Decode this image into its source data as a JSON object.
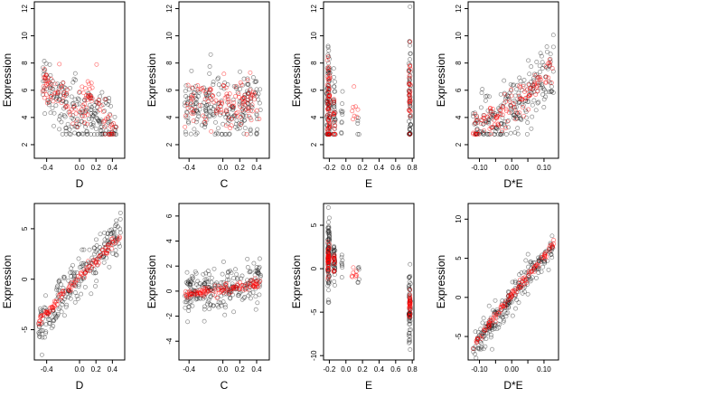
{
  "chart_data": [
    {
      "type": "scatter",
      "xlabel": "D",
      "ylabel": "Expression",
      "xlim": [
        -0.55,
        0.55
      ],
      "ylim": [
        1,
        12.5
      ],
      "xticks": [
        -0.4,
        0.0,
        0.2,
        0.4
      ],
      "xtick_labels": [
        "-0.4",
        "0.0",
        "0.2",
        "0.4"
      ],
      "yticks": [
        2,
        4,
        6,
        8,
        10,
        12
      ],
      "ytick_labels": [
        "2",
        "4",
        "6",
        "8",
        "10",
        "12"
      ],
      "series": [
        {
          "color": "#000000",
          "trend": [
            [
              -0.45,
              7.0
            ],
            [
              -0.3,
              5.5
            ],
            [
              -0.1,
              4.3
            ],
            [
              0.0,
              4.0
            ],
            [
              0.15,
              4.8
            ],
            [
              0.3,
              3.6
            ],
            [
              0.45,
              3.0
            ]
          ],
          "spread": 2.2,
          "floor": 2.75,
          "n": 220
        },
        {
          "color": "#ff0000",
          "trend": [
            [
              -0.45,
              6.8
            ],
            [
              -0.3,
              6.0
            ],
            [
              -0.1,
              4.6
            ],
            [
              0.0,
              4.4
            ],
            [
              0.15,
              6.3
            ],
            [
              0.3,
              3.4
            ],
            [
              0.45,
              2.8
            ]
          ],
          "spread": 1.3,
          "floor": 2.75,
          "n": 110
        }
      ]
    },
    {
      "type": "scatter",
      "xlabel": "C",
      "ylabel": "Expression",
      "xlim": [
        -0.52,
        0.55
      ],
      "ylim": [
        1,
        12.5
      ],
      "xticks": [
        -0.4,
        0.0,
        0.2,
        0.4
      ],
      "xtick_labels": [
        "-0.4",
        "0.0",
        "0.2",
        "0.4"
      ],
      "yticks": [
        2,
        4,
        6,
        8,
        10,
        12
      ],
      "ytick_labels": [
        "2",
        "4",
        "6",
        "8",
        "10",
        "12"
      ],
      "series": [
        {
          "color": "#000000",
          "trend": [
            [
              -0.45,
              4.8
            ],
            [
              0.0,
              4.6
            ],
            [
              0.45,
              4.8
            ]
          ],
          "spread": 2.2,
          "floor": 2.75,
          "n": 230
        },
        {
          "color": "#ff0000",
          "trend": [
            [
              -0.45,
              4.9
            ],
            [
              0.0,
              5.0
            ],
            [
              0.45,
              5.2
            ]
          ],
          "spread": 1.6,
          "floor": 2.75,
          "n": 110
        }
      ]
    },
    {
      "type": "scatter",
      "xlabel": "E",
      "ylabel": "Expression",
      "xlim": [
        -0.27,
        0.82
      ],
      "ylim": [
        1,
        12.5
      ],
      "xticks": [
        -0.2,
        0.0,
        0.2,
        0.4,
        0.6,
        0.8
      ],
      "xtick_labels": [
        "-0.2",
        "0.0",
        "0.2",
        "0.4",
        "0.6",
        "0.8"
      ],
      "yticks": [
        2,
        4,
        6,
        8,
        10,
        12
      ],
      "ytick_labels": [
        "2",
        "4",
        "6",
        "8",
        "10",
        "12"
      ],
      "series": [
        {
          "color": "#000000",
          "clusters": [
            [
              -0.21,
              0.02,
              4.8,
              2.2,
              90
            ],
            [
              -0.14,
              0.015,
              4.2,
              1.8,
              30
            ],
            [
              -0.05,
              0.01,
              4.0,
              1.2,
              10
            ],
            [
              0.15,
              0.01,
              3.5,
              1.0,
              5
            ],
            [
              0.77,
              0.012,
              5.5,
              2.4,
              60
            ]
          ],
          "floor": 2.75
        },
        {
          "color": "#ff0000",
          "clusters": [
            [
              -0.21,
              0.015,
              5.0,
              1.5,
              55
            ],
            [
              -0.14,
              0.01,
              4.3,
              1.0,
              15
            ],
            [
              0.1,
              0.06,
              4.8,
              0.8,
              8
            ],
            [
              0.77,
              0.01,
              5.8,
              1.6,
              30
            ]
          ],
          "floor": 2.75
        }
      ]
    },
    {
      "type": "scatter",
      "xlabel": "D*E",
      "ylabel": "Expression",
      "xlim": [
        -0.135,
        0.145
      ],
      "ylim": [
        1,
        12.5
      ],
      "xticks": [
        -0.1,
        -0.05,
        0.0,
        0.05,
        0.1
      ],
      "xtick_labels": [
        "-0.10",
        "",
        "0.00",
        "",
        "0.10"
      ],
      "yticks": [
        2,
        4,
        6,
        8,
        10,
        12
      ],
      "ytick_labels": [
        "2",
        "4",
        "6",
        "8",
        "10",
        "12"
      ],
      "series": [
        {
          "color": "#000000",
          "trend": [
            [
              -0.12,
              3.0
            ],
            [
              -0.05,
              3.6
            ],
            [
              0.0,
              4.4
            ],
            [
              0.07,
              5.8
            ],
            [
              0.13,
              7.2
            ]
          ],
          "spread": 2.2,
          "floor": 2.75,
          "n": 230
        },
        {
          "color": "#ff0000",
          "trend": [
            [
              -0.12,
              2.9
            ],
            [
              -0.05,
              3.8
            ],
            [
              0.0,
              4.6
            ],
            [
              0.07,
              6.0
            ],
            [
              0.13,
              7.8
            ]
          ],
          "spread": 1.2,
          "floor": 2.75,
          "n": 110
        }
      ]
    },
    {
      "type": "scatter",
      "xlabel": "D",
      "ylabel": "Expression",
      "xlim": [
        -0.55,
        0.55
      ],
      "ylim": [
        -8,
        7.5
      ],
      "xticks": [
        -0.4,
        0.0,
        0.2,
        0.4
      ],
      "xtick_labels": [
        "-0.4",
        "0.0",
        "0.2",
        "0.4"
      ],
      "yticks": [
        -5,
        0,
        5
      ],
      "ytick_labels": [
        "-5",
        "0",
        "5"
      ],
      "series": [
        {
          "color": "#000000",
          "trend": [
            [
              -0.5,
              -5.0
            ],
            [
              0.0,
              0.5
            ],
            [
              0.5,
              4.5
            ]
          ],
          "spread": 1.9,
          "n": 230
        },
        {
          "color": "#ff0000",
          "trend": [
            [
              -0.5,
              -4.2
            ],
            [
              0.0,
              0.3
            ],
            [
              0.5,
              4.2
            ]
          ],
          "spread": 0.45,
          "n": 110
        }
      ]
    },
    {
      "type": "scatter",
      "xlabel": "C",
      "ylabel": "Expression",
      "xlim": [
        -0.52,
        0.55
      ],
      "ylim": [
        -5.5,
        7
      ],
      "xticks": [
        -0.4,
        0.0,
        0.2,
        0.4
      ],
      "xtick_labels": [
        "-0.4",
        "0.0",
        "0.2",
        "0.4"
      ],
      "yticks": [
        -4,
        -2,
        0,
        2,
        4,
        6
      ],
      "ytick_labels": [
        "-4",
        "-2",
        "0",
        "2",
        "4",
        "6"
      ],
      "series": [
        {
          "color": "#000000",
          "trend": [
            [
              -0.45,
              -0.2
            ],
            [
              0.0,
              0.0
            ],
            [
              0.45,
              0.8
            ]
          ],
          "spread": 1.7,
          "n": 230
        },
        {
          "color": "#ff0000",
          "trend": [
            [
              -0.45,
              -0.3
            ],
            [
              0.0,
              0.1
            ],
            [
              0.45,
              0.6
            ]
          ],
          "spread": 0.35,
          "n": 110
        }
      ]
    },
    {
      "type": "scatter",
      "xlabel": "E",
      "ylabel": "Expression",
      "xlim": [
        -0.27,
        0.82
      ],
      "ylim": [
        -10.5,
        7.5
      ],
      "xticks": [
        -0.2,
        0.0,
        0.2,
        0.4,
        0.6,
        0.8
      ],
      "xtick_labels": [
        "-0.2",
        "0.0",
        "0.2",
        "0.4",
        "0.6",
        "0.8"
      ],
      "yticks": [
        -10,
        -5,
        0,
        5
      ],
      "ytick_labels": [
        "-10",
        "-5",
        "0",
        "5"
      ],
      "series": [
        {
          "color": "#000000",
          "clusters": [
            [
              -0.21,
              0.012,
              1.0,
              2.3,
              90
            ],
            [
              -0.14,
              0.01,
              0.8,
              1.6,
              35
            ],
            [
              -0.05,
              0.008,
              0.3,
              0.7,
              8
            ],
            [
              0.15,
              0.01,
              -0.8,
              1.0,
              6
            ],
            [
              0.77,
              0.012,
              -4.5,
              2.0,
              60
            ]
          ],
          "floor": -99
        },
        {
          "color": "#ff0000",
          "clusters": [
            [
              -0.21,
              0.01,
              1.2,
              0.9,
              45
            ],
            [
              -0.14,
              0.008,
              0.8,
              0.6,
              15
            ],
            [
              0.1,
              0.05,
              -0.5,
              0.6,
              8
            ],
            [
              0.77,
              0.008,
              -4.2,
              0.7,
              30
            ]
          ],
          "floor": -99
        }
      ]
    },
    {
      "type": "scatter",
      "xlabel": "D*E",
      "ylabel": "Expression",
      "xlim": [
        -0.135,
        0.145
      ],
      "ylim": [
        -8,
        12
      ],
      "xticks": [
        -0.1,
        -0.05,
        0.0,
        0.05,
        0.1
      ],
      "xtick_labels": [
        "-0.10",
        "",
        "0.00",
        "",
        "0.10"
      ],
      "yticks": [
        -5,
        0,
        5,
        10
      ],
      "ytick_labels": [
        "-5",
        "0",
        "5",
        "10"
      ],
      "series": [
        {
          "color": "#000000",
          "trend": [
            [
              -0.12,
              -6.5
            ],
            [
              0.0,
              0.0
            ],
            [
              0.13,
              7.0
            ]
          ],
          "spread": 1.8,
          "n": 230
        },
        {
          "color": "#ff0000",
          "trend": [
            [
              -0.12,
              -6.3
            ],
            [
              0.0,
              0.3
            ],
            [
              0.13,
              6.8
            ]
          ],
          "spread": 0.45,
          "n": 110
        }
      ]
    }
  ]
}
